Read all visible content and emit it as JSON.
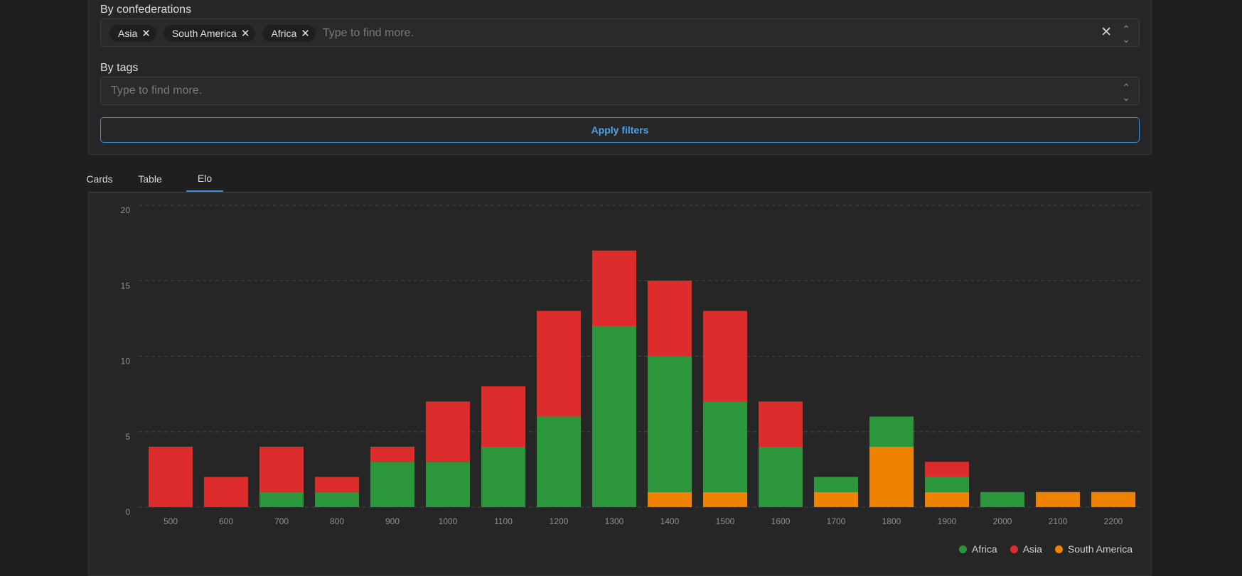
{
  "filters": {
    "confederations_label": "By confederations",
    "confederations_selected": [
      "Asia",
      "South America",
      "Africa"
    ],
    "confederations_placeholder": "Type to find more.",
    "tags_label": "By tags",
    "tags_placeholder": "Type to find more.",
    "apply_label": "Apply filters"
  },
  "tabs": [
    "Cards",
    "Table",
    "Elo"
  ],
  "active_tab": "Elo",
  "colors": {
    "Africa": "#2b963b",
    "Asia": "#dc2c2c",
    "South America": "#ef8200"
  },
  "chart_data": {
    "type": "bar",
    "stacked": true,
    "categories": [
      "500",
      "600",
      "700",
      "800",
      "900",
      "1000",
      "1100",
      "1200",
      "1300",
      "1400",
      "1500",
      "1600",
      "1700",
      "1800",
      "1900",
      "2000",
      "2100",
      "2200"
    ],
    "series": [
      {
        "name": "South America",
        "values": [
          0,
          0,
          0,
          0,
          0,
          0,
          0,
          0,
          0,
          1,
          1,
          0,
          1,
          4,
          1,
          0,
          1,
          1
        ]
      },
      {
        "name": "Africa",
        "values": [
          0,
          0,
          1,
          1,
          3,
          3,
          4,
          6,
          12,
          9,
          6,
          4,
          1,
          2,
          1,
          1,
          0,
          0
        ]
      },
      {
        "name": "Asia",
        "values": [
          4,
          2,
          3,
          1,
          1,
          4,
          4,
          7,
          5,
          5,
          6,
          3,
          0,
          0,
          1,
          0,
          0,
          0
        ]
      }
    ],
    "legend": [
      "Africa",
      "Asia",
      "South America"
    ],
    "legend_position": "bottom-right",
    "ylim": [
      0,
      20
    ],
    "yticks": [
      0,
      5,
      10,
      15,
      20
    ],
    "grid": true
  }
}
